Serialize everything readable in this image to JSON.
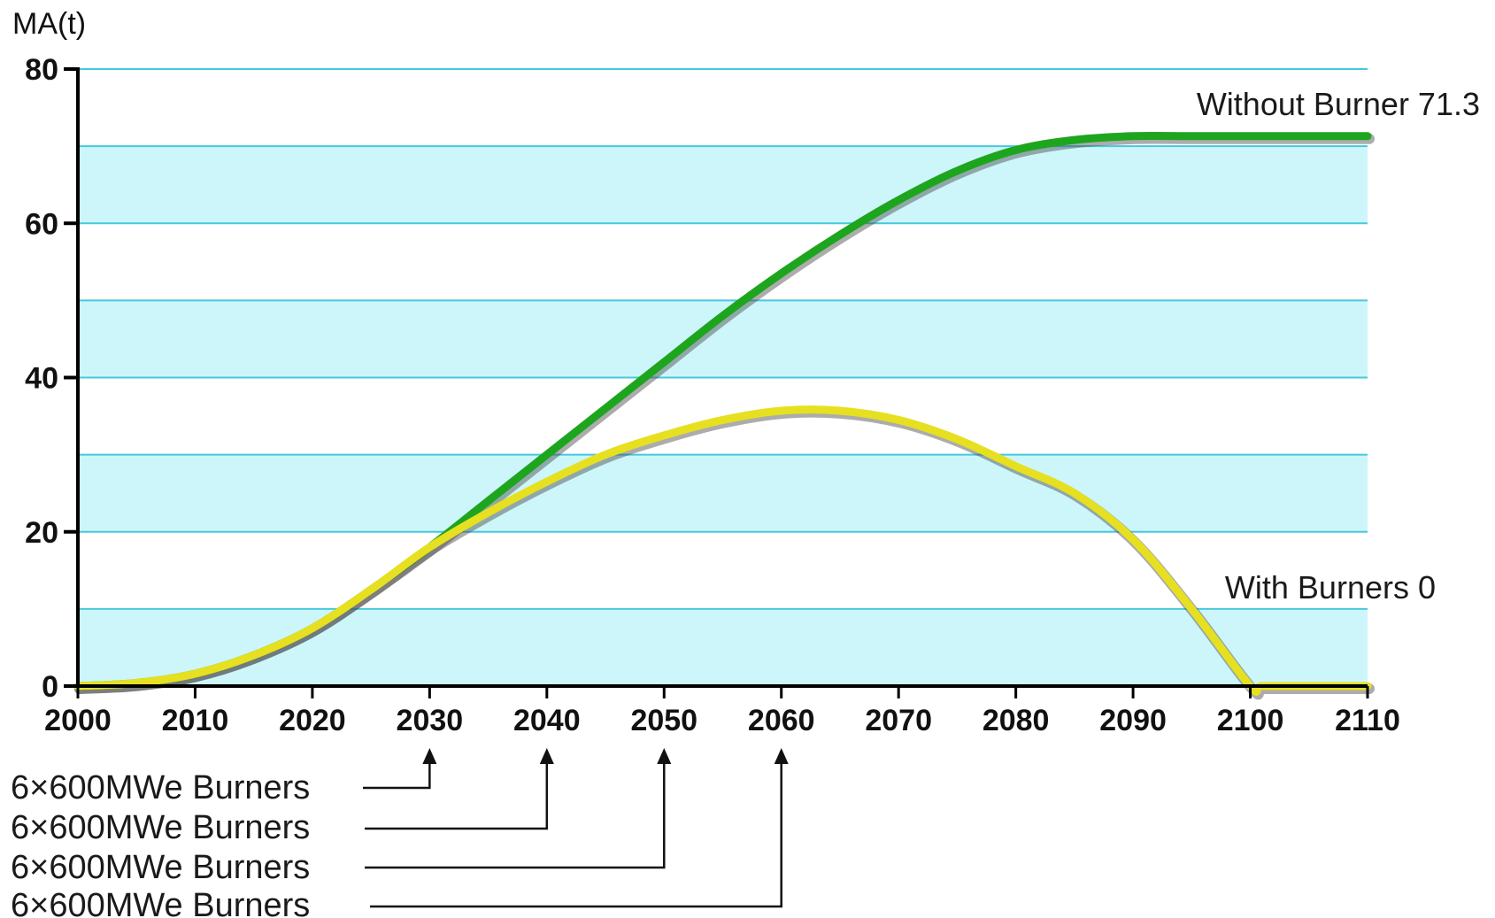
{
  "chart_data": {
    "type": "line",
    "xlabel": "",
    "ylabel": "MA(t)",
    "xlim": [
      2000,
      2110
    ],
    "ylim": [
      0,
      80
    ],
    "x_ticks": [
      "2000",
      "2010",
      "2020",
      "2030",
      "2040",
      "2050",
      "2060",
      "2070",
      "2080",
      "2090",
      "2100",
      "2110"
    ],
    "y_ticks": [
      "0",
      "20",
      "40",
      "60",
      "80"
    ],
    "grid": true,
    "series": [
      {
        "name": "Without Burner 71.3",
        "color": "#1ea51e",
        "x": [
          2000,
          2005,
          2010,
          2015,
          2020,
          2025,
          2030,
          2035,
          2040,
          2045,
          2050,
          2055,
          2060,
          2065,
          2070,
          2075,
          2080,
          2085,
          2090,
          2095,
          2100,
          2105,
          2110
        ],
        "y": [
          0,
          0.4,
          1.6,
          4,
          7.5,
          12.5,
          18,
          24,
          30,
          36,
          42,
          48,
          53.5,
          58.5,
          63,
          66.8,
          69.5,
          70.8,
          71.3,
          71.3,
          71.3,
          71.3,
          71.3
        ]
      },
      {
        "name": "With Burners 0",
        "color": "#e6e020",
        "x": [
          2000,
          2005,
          2010,
          2015,
          2020,
          2025,
          2030,
          2035,
          2040,
          2045,
          2050,
          2055,
          2060,
          2065,
          2070,
          2075,
          2080,
          2085,
          2090,
          2095,
          2100,
          2101,
          2105,
          2110
        ],
        "y": [
          0,
          0.4,
          1.6,
          4,
          7.5,
          12.5,
          18,
          22.5,
          26.5,
          30,
          32.5,
          34.5,
          35.7,
          35.7,
          34.5,
          32,
          28.5,
          25,
          19,
          10,
          0,
          0,
          0,
          0
        ]
      }
    ],
    "annotations": [
      {
        "label": "6×600MWe Burners",
        "x": 2030
      },
      {
        "label": "6×600MWe Burners",
        "x": 2040
      },
      {
        "label": "6×600MWe Burners",
        "x": 2050
      },
      {
        "label": "6×600MWe Burners",
        "x": 2060
      }
    ]
  }
}
